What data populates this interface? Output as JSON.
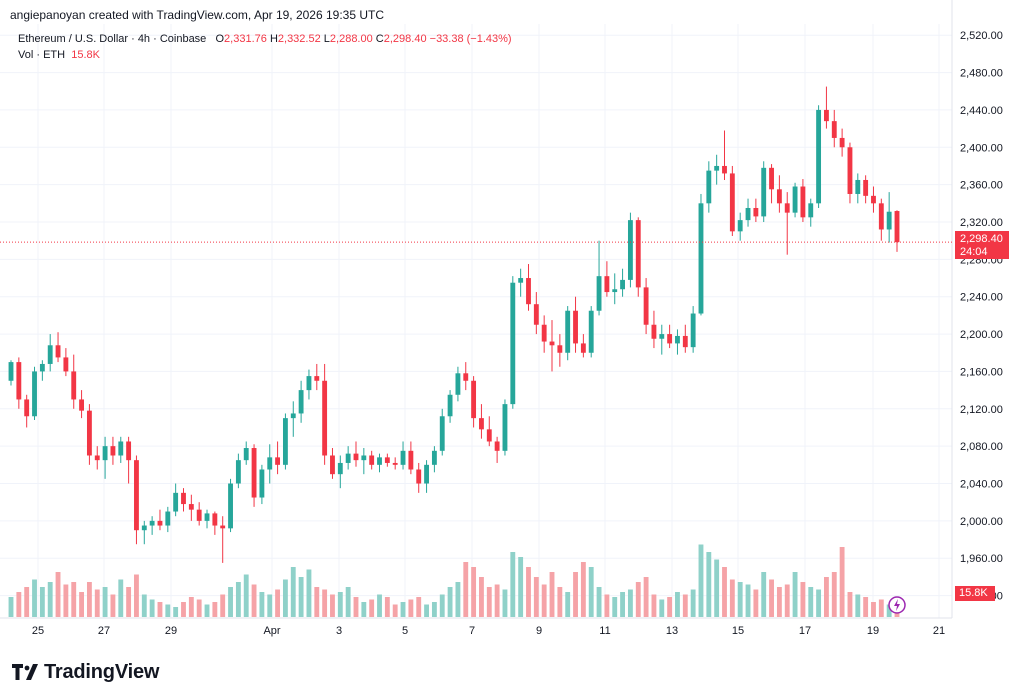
{
  "header": {
    "credit": "angiepanoyan created with TradingView.com, Apr 19, 2026 19:35 UTC",
    "symbol": "Ethereum / U.S. Dollar · 4h · Coinbase",
    "open_label": "O",
    "open": "2,331.76",
    "high_label": "H",
    "high": "2,332.52",
    "low_label": "L",
    "low": "2,288.00",
    "close_label": "C",
    "close": "2,298.40",
    "change": "−33.38 (−1.43%)",
    "vol_label": "Vol · ETH",
    "vol_value": "15.8K"
  },
  "price_tag": {
    "price": "2,298.40",
    "countdown": "24:04"
  },
  "volume_tag": "15.8K",
  "brand": {
    "name": "TradingView",
    "icon": "tradingview-logo-icon"
  },
  "colors": {
    "up": "#26a69a",
    "down": "#f23645",
    "vol_up": "#8fd1c9",
    "vol_down": "#f5a3a7",
    "grid": "#f0f3fa"
  },
  "chart_data": {
    "type": "candlestick",
    "symbol": "ETH/USD",
    "interval": "4h",
    "y_ticks": [
      1920,
      1960,
      2000,
      2040,
      2080,
      2120,
      2160,
      2200,
      2240,
      2280,
      2320,
      2360,
      2400,
      2440,
      2480,
      2520
    ],
    "y_tick_labels": [
      "1,920.00",
      "1,960.00",
      "2,000.00",
      "2,040.00",
      "2,080.00",
      "2,120.00",
      "2,160.00",
      "2,200.00",
      "2,240.00",
      "2,280.00",
      "2,320.00",
      "2,360.00",
      "2,400.00",
      "2,440.00",
      "2,480.00",
      "2,520.00"
    ],
    "x_labels": [
      "25",
      "27",
      "29",
      "Apr",
      "3",
      "5",
      "7",
      "9",
      "11",
      "13",
      "15",
      "17",
      "19",
      "21"
    ],
    "ylim": [
      1896,
      2532
    ],
    "current_price": 2298.4,
    "grid": true,
    "candles": [
      [
        2150,
        2172,
        2145,
        2170
      ],
      [
        2170,
        2175,
        2120,
        2130
      ],
      [
        2130,
        2135,
        2100,
        2112
      ],
      [
        2112,
        2165,
        2108,
        2160
      ],
      [
        2160,
        2172,
        2150,
        2168
      ],
      [
        2168,
        2200,
        2160,
        2188
      ],
      [
        2188,
        2202,
        2170,
        2175
      ],
      [
        2175,
        2185,
        2155,
        2160
      ],
      [
        2160,
        2178,
        2120,
        2130
      ],
      [
        2130,
        2140,
        2110,
        2118
      ],
      [
        2118,
        2125,
        2060,
        2070
      ],
      [
        2070,
        2080,
        2055,
        2065
      ],
      [
        2065,
        2090,
        2045,
        2080
      ],
      [
        2080,
        2090,
        2060,
        2070
      ],
      [
        2070,
        2090,
        2062,
        2085
      ],
      [
        2085,
        2090,
        2040,
        2065
      ],
      [
        2065,
        2070,
        1975,
        1990
      ],
      [
        1990,
        2000,
        1975,
        1995
      ],
      [
        1995,
        2005,
        1985,
        2000
      ],
      [
        2000,
        2012,
        1990,
        1995
      ],
      [
        1995,
        2015,
        1988,
        2010
      ],
      [
        2010,
        2040,
        2005,
        2030
      ],
      [
        2030,
        2035,
        2010,
        2018
      ],
      [
        2018,
        2028,
        2000,
        2012
      ],
      [
        2012,
        2020,
        1995,
        2000
      ],
      [
        2000,
        2012,
        1992,
        2008
      ],
      [
        2008,
        2010,
        1985,
        1995
      ],
      [
        1995,
        2005,
        1955,
        1992
      ],
      [
        1992,
        2045,
        1988,
        2040
      ],
      [
        2040,
        2072,
        2035,
        2065
      ],
      [
        2065,
        2085,
        2060,
        2078
      ],
      [
        2078,
        2082,
        2015,
        2025
      ],
      [
        2025,
        2060,
        2018,
        2055
      ],
      [
        2055,
        2082,
        2040,
        2068
      ],
      [
        2068,
        2085,
        2050,
        2060
      ],
      [
        2060,
        2115,
        2055,
        2110
      ],
      [
        2110,
        2128,
        2090,
        2115
      ],
      [
        2115,
        2150,
        2105,
        2140
      ],
      [
        2140,
        2162,
        2130,
        2155
      ],
      [
        2155,
        2168,
        2140,
        2150
      ],
      [
        2150,
        2168,
        2060,
        2070
      ],
      [
        2070,
        2078,
        2045,
        2050
      ],
      [
        2050,
        2070,
        2035,
        2062
      ],
      [
        2062,
        2080,
        2055,
        2072
      ],
      [
        2072,
        2085,
        2058,
        2065
      ],
      [
        2065,
        2078,
        2050,
        2070
      ],
      [
        2070,
        2075,
        2055,
        2060
      ],
      [
        2060,
        2072,
        2052,
        2068
      ],
      [
        2068,
        2072,
        2058,
        2062
      ],
      [
        2062,
        2068,
        2055,
        2060
      ],
      [
        2060,
        2085,
        2055,
        2075
      ],
      [
        2075,
        2085,
        2050,
        2055
      ],
      [
        2055,
        2062,
        2030,
        2040
      ],
      [
        2040,
        2065,
        2030,
        2060
      ],
      [
        2060,
        2080,
        2052,
        2075
      ],
      [
        2075,
        2120,
        2070,
        2112
      ],
      [
        2112,
        2140,
        2105,
        2135
      ],
      [
        2135,
        2165,
        2128,
        2158
      ],
      [
        2158,
        2170,
        2140,
        2150
      ],
      [
        2150,
        2155,
        2100,
        2110
      ],
      [
        2110,
        2125,
        2088,
        2098
      ],
      [
        2098,
        2112,
        2080,
        2085
      ],
      [
        2085,
        2090,
        2062,
        2075
      ],
      [
        2075,
        2130,
        2070,
        2125
      ],
      [
        2125,
        2262,
        2120,
        2255
      ],
      [
        2255,
        2270,
        2240,
        2260
      ],
      [
        2260,
        2275,
        2225,
        2232
      ],
      [
        2232,
        2245,
        2200,
        2210
      ],
      [
        2210,
        2220,
        2180,
        2192
      ],
      [
        2192,
        2215,
        2160,
        2188
      ],
      [
        2188,
        2200,
        2165,
        2180
      ],
      [
        2180,
        2230,
        2172,
        2225
      ],
      [
        2225,
        2240,
        2180,
        2190
      ],
      [
        2190,
        2200,
        2175,
        2180
      ],
      [
        2180,
        2230,
        2175,
        2225
      ],
      [
        2225,
        2300,
        2220,
        2262
      ],
      [
        2262,
        2278,
        2240,
        2245
      ],
      [
        2245,
        2265,
        2232,
        2248
      ],
      [
        2248,
        2270,
        2240,
        2258
      ],
      [
        2258,
        2330,
        2250,
        2322
      ],
      [
        2322,
        2325,
        2240,
        2250
      ],
      [
        2250,
        2260,
        2200,
        2210
      ],
      [
        2210,
        2225,
        2185,
        2195
      ],
      [
        2195,
        2210,
        2178,
        2200
      ],
      [
        2200,
        2210,
        2185,
        2190
      ],
      [
        2190,
        2205,
        2178,
        2198
      ],
      [
        2198,
        2210,
        2180,
        2186
      ],
      [
        2186,
        2230,
        2180,
        2222
      ],
      [
        2222,
        2350,
        2220,
        2340
      ],
      [
        2340,
        2385,
        2330,
        2375
      ],
      [
        2375,
        2392,
        2360,
        2380
      ],
      [
        2380,
        2418,
        2365,
        2372
      ],
      [
        2372,
        2380,
        2305,
        2310
      ],
      [
        2310,
        2330,
        2300,
        2322
      ],
      [
        2322,
        2345,
        2315,
        2335
      ],
      [
        2335,
        2345,
        2320,
        2326
      ],
      [
        2326,
        2385,
        2320,
        2378
      ],
      [
        2378,
        2382,
        2340,
        2355
      ],
      [
        2355,
        2370,
        2330,
        2340
      ],
      [
        2340,
        2352,
        2285,
        2330
      ],
      [
        2330,
        2362,
        2325,
        2358
      ],
      [
        2358,
        2366,
        2320,
        2325
      ],
      [
        2325,
        2345,
        2315,
        2340
      ],
      [
        2340,
        2445,
        2335,
        2440
      ],
      [
        2440,
        2465,
        2420,
        2428
      ],
      [
        2428,
        2440,
        2400,
        2410
      ],
      [
        2410,
        2420,
        2390,
        2400
      ],
      [
        2400,
        2405,
        2340,
        2350
      ],
      [
        2350,
        2372,
        2340,
        2365
      ],
      [
        2365,
        2370,
        2340,
        2348
      ],
      [
        2348,
        2358,
        2330,
        2340
      ],
      [
        2340,
        2345,
        2300,
        2312
      ],
      [
        2312,
        2352,
        2298,
        2331
      ],
      [
        2331.76,
        2332.52,
        2288.0,
        2298.4
      ]
    ],
    "volume_max": 60000,
    "volumes": [
      8,
      10,
      12,
      15,
      12,
      14,
      18,
      13,
      14,
      10,
      14,
      11,
      12,
      9,
      15,
      12,
      17,
      9,
      7,
      6,
      5,
      4,
      6,
      8,
      7,
      5,
      6,
      9,
      12,
      14,
      17,
      13,
      10,
      9,
      11,
      15,
      20,
      16,
      19,
      12,
      11,
      9,
      10,
      12,
      8,
      6,
      7,
      9,
      8,
      5,
      6,
      7,
      8,
      5,
      6,
      9,
      12,
      14,
      22,
      20,
      16,
      12,
      13,
      11,
      26,
      24,
      20,
      16,
      13,
      18,
      12,
      10,
      18,
      22,
      20,
      12,
      9,
      8,
      10,
      11,
      14,
      16,
      9,
      7,
      8,
      10,
      9,
      11,
      29,
      26,
      23,
      20,
      15,
      14,
      13,
      11,
      18,
      15,
      12,
      13,
      18,
      14,
      12,
      11,
      16,
      18,
      28,
      10,
      9,
      8,
      6,
      7,
      5,
      4,
      9,
      15.8
    ]
  }
}
